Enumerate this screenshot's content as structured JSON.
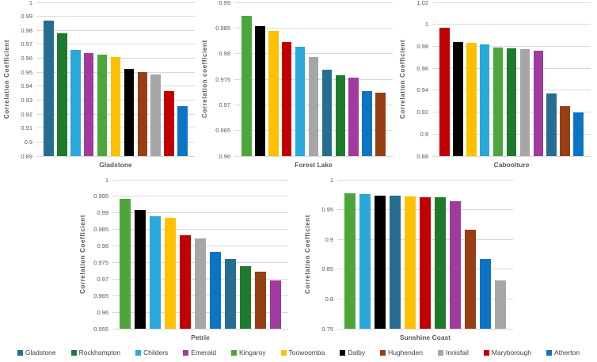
{
  "colors": {
    "background": "#FFFFFF",
    "gridline": "#D9D9D9",
    "axis_text": "#595959",
    "legend_text": "#404040"
  },
  "series": [
    {
      "name": "Gladstone",
      "color": "#256E91"
    },
    {
      "name": "Rockhampton",
      "color": "#1E7B2E"
    },
    {
      "name": "Childers",
      "color": "#29A8DC"
    },
    {
      "name": "Emerald",
      "color": "#A03A9E"
    },
    {
      "name": "Kingaroy",
      "color": "#4CA63C"
    },
    {
      "name": "Toowoomba",
      "color": "#FFC000"
    },
    {
      "name": "Dalby",
      "color": "#000000"
    },
    {
      "name": "Hughenden",
      "color": "#963E14"
    },
    {
      "name": "Innisfail",
      "color": "#A6A6A6"
    },
    {
      "name": "Maryborough",
      "color": "#C00000"
    },
    {
      "name": "Atherton",
      "color": "#0C74C4"
    }
  ],
  "chart_data": [
    {
      "type": "bar",
      "row": "top",
      "title": "Gladstone",
      "ylabel": "Correlation Coefficient",
      "ylim": [
        0.89,
        1
      ],
      "grid": true,
      "ytick_values": [
        0.89,
        0.9,
        0.91,
        0.92,
        0.93,
        0.94,
        0.95,
        0.96,
        0.97,
        0.98,
        0.99,
        1
      ],
      "ytick_labels": [
        "0.89",
        "0.9",
        "0.91",
        "0.92",
        "0.93",
        "0.94",
        "0.95",
        "0.96",
        "0.97",
        "0.98",
        "0.99",
        "1"
      ],
      "bars": [
        {
          "series": "Gladstone",
          "value": 0.9872
        },
        {
          "series": "Rockhampton",
          "value": 0.9778
        },
        {
          "series": "Childers",
          "value": 0.9662
        },
        {
          "series": "Emerald",
          "value": 0.9636
        },
        {
          "series": "Kingaroy",
          "value": 0.9624
        },
        {
          "series": "Toowoomba",
          "value": 0.961
        },
        {
          "series": "Dalby",
          "value": 0.9521
        },
        {
          "series": "Hughenden",
          "value": 0.9502
        },
        {
          "series": "Innisfail",
          "value": 0.9486
        },
        {
          "series": "Maryborough",
          "value": 0.9366
        },
        {
          "series": "Atherton",
          "value": 0.9259
        }
      ]
    },
    {
      "type": "bar",
      "row": "top",
      "title": "Forest Lake",
      "ylabel": "Correlation coefficient",
      "ylim": [
        0.96,
        0.99
      ],
      "grid": true,
      "ytick_values": [
        0.96,
        0.965,
        0.97,
        0.975,
        0.98,
        0.985,
        0.99
      ],
      "ytick_labels": [
        "0.96",
        "0.965",
        "0.97",
        "0.975",
        "0.98",
        "0.985",
        "0.99"
      ],
      "bars": [
        {
          "series": "Kingaroy",
          "value": 0.9873
        },
        {
          "series": "Dalby",
          "value": 0.9854
        },
        {
          "series": "Toowoomba",
          "value": 0.9845
        },
        {
          "series": "Maryborough",
          "value": 0.9823
        },
        {
          "series": "Childers",
          "value": 0.9814
        },
        {
          "series": "Innisfail",
          "value": 0.9794
        },
        {
          "series": "Gladstone",
          "value": 0.9768
        },
        {
          "series": "Rockhampton",
          "value": 0.9758
        },
        {
          "series": "Emerald",
          "value": 0.9753
        },
        {
          "series": "Atherton",
          "value": 0.9727
        },
        {
          "series": "Hughenden",
          "value": 0.9723
        }
      ]
    },
    {
      "type": "bar",
      "row": "top",
      "title": "Caboolture",
      "ylabel": "Correlation Coefficient",
      "ylim": [
        0.88,
        1.02
      ],
      "grid": true,
      "ytick_values": [
        0.88,
        0.9,
        0.92,
        0.94,
        0.96,
        0.98,
        1,
        1.02
      ],
      "ytick_labels": [
        "0.88",
        "0.9",
        "0.92",
        "0.94",
        "0.96",
        "0.98",
        "1",
        "1.02"
      ],
      "bars": [
        {
          "series": "Maryborough",
          "value": 0.997
        },
        {
          "series": "Dalby",
          "value": 0.9836
        },
        {
          "series": "Toowoomba",
          "value": 0.9829
        },
        {
          "series": "Childers",
          "value": 0.9816
        },
        {
          "series": "Kingaroy",
          "value": 0.979
        },
        {
          "series": "Rockhampton",
          "value": 0.9778
        },
        {
          "series": "Innisfail",
          "value": 0.9773
        },
        {
          "series": "Emerald",
          "value": 0.9757
        },
        {
          "series": "Gladstone",
          "value": 0.937
        },
        {
          "series": "Hughenden",
          "value": 0.9256
        },
        {
          "series": "Atherton",
          "value": 0.9199
        }
      ]
    },
    {
      "type": "bar",
      "row": "bottom",
      "title": "Petrie",
      "ylabel": "Correlation Coefficient",
      "ylim": [
        0.955,
        1
      ],
      "grid": true,
      "ytick_values": [
        0.955,
        0.96,
        0.965,
        0.97,
        0.975,
        0.98,
        0.985,
        0.99,
        0.995,
        1
      ],
      "ytick_labels": [
        "0.955",
        "0.96",
        "0.965",
        "0.97",
        "0.975",
        "0.98",
        "0.985",
        "0.99",
        "0.995",
        "1"
      ],
      "bars": [
        {
          "series": "Kingaroy",
          "value": 0.9943
        },
        {
          "series": "Dalby",
          "value": 0.9909
        },
        {
          "series": "Childers",
          "value": 0.9891
        },
        {
          "series": "Toowoomba",
          "value": 0.9886
        },
        {
          "series": "Maryborough",
          "value": 0.9832
        },
        {
          "series": "Innisfail",
          "value": 0.9824
        },
        {
          "series": "Atherton",
          "value": 0.9782
        },
        {
          "series": "Gladstone",
          "value": 0.976
        },
        {
          "series": "Rockhampton",
          "value": 0.974
        },
        {
          "series": "Hughenden",
          "value": 0.9722
        },
        {
          "series": "Emerald",
          "value": 0.9697
        }
      ]
    },
    {
      "type": "bar",
      "row": "bottom",
      "title": "Sunshine Coast",
      "ylabel": "Correlation Coefficient",
      "ylim": [
        0.75,
        1
      ],
      "grid": true,
      "ytick_values": [
        0.75,
        0.8,
        0.85,
        0.9,
        0.95,
        1
      ],
      "ytick_labels": [
        "0.75",
        "0.8",
        "0.85",
        "0.9",
        "0.95",
        "1"
      ],
      "bars": [
        {
          "series": "Kingaroy",
          "value": 0.978
        },
        {
          "series": "Childers",
          "value": 0.9765
        },
        {
          "series": "Dalby",
          "value": 0.9738
        },
        {
          "series": "Gladstone",
          "value": 0.973
        },
        {
          "series": "Toowoomba",
          "value": 0.972
        },
        {
          "series": "Maryborough",
          "value": 0.9712
        },
        {
          "series": "Rockhampton",
          "value": 0.9703
        },
        {
          "series": "Emerald",
          "value": 0.9645
        },
        {
          "series": "Hughenden",
          "value": 0.9168
        },
        {
          "series": "Atherton",
          "value": 0.8672
        },
        {
          "series": "Innisfail",
          "value": 0.8312
        }
      ]
    }
  ],
  "legend": {
    "items": [
      "Gladstone",
      "Rockhampton",
      "Childers",
      "Emerald",
      "Kingaroy",
      "Toowoomba",
      "Dalby",
      "Hughenden",
      "Innisfail",
      "Maryborough",
      "Atherton"
    ]
  }
}
